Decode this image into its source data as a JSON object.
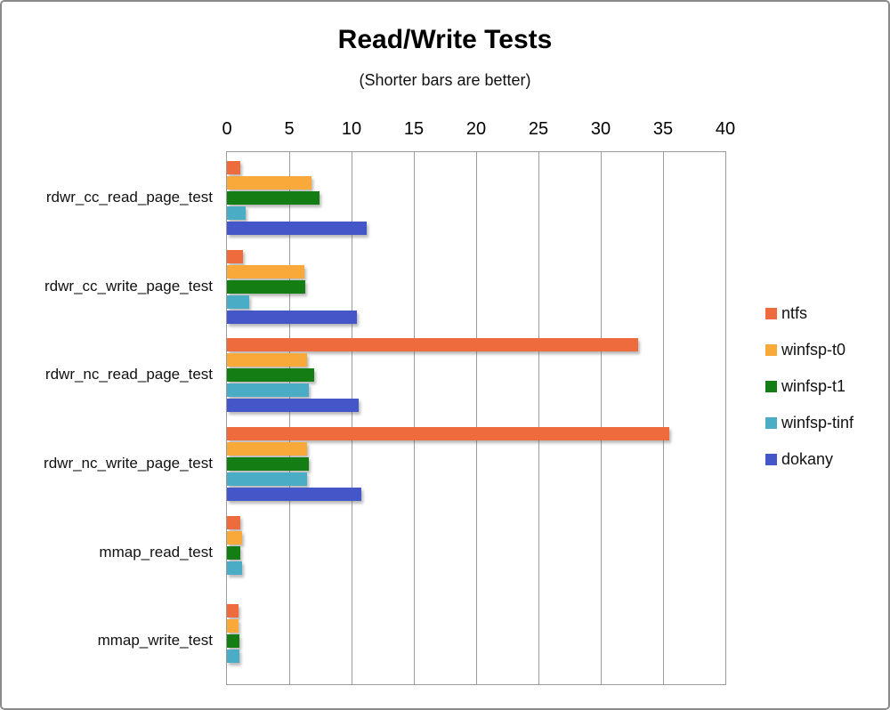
{
  "window": {
    "border_color": "#8a8a8a",
    "background": "#ffffff"
  },
  "chart_data": {
    "type": "bar",
    "orientation": "horizontal",
    "title": "Read/Write Tests",
    "subtitle": "(Shorter bars are better)",
    "categories": [
      "rdwr_cc_read_page_test",
      "rdwr_cc_write_page_test",
      "rdwr_nc_read_page_test",
      "rdwr_nc_write_page_test",
      "mmap_read_test",
      "mmap_write_test"
    ],
    "series": [
      {
        "name": "ntfs",
        "color": "#EE6B3D",
        "values": [
          1.1,
          1.3,
          33.0,
          35.5,
          1.1,
          0.9
        ]
      },
      {
        "name": "winfsp-t0",
        "color": "#F9A83A",
        "values": [
          6.8,
          6.2,
          6.4,
          6.4,
          1.2,
          0.9
        ]
      },
      {
        "name": "winfsp-t1",
        "color": "#147D14",
        "values": [
          7.4,
          6.3,
          7.0,
          6.6,
          1.1,
          1.0
        ]
      },
      {
        "name": "winfsp-tinf",
        "color": "#4BACC6",
        "values": [
          1.5,
          1.8,
          6.6,
          6.4,
          1.2,
          1.0
        ]
      },
      {
        "name": "dokany",
        "color": "#4456C8",
        "values": [
          11.2,
          10.4,
          10.6,
          10.8,
          0,
          0
        ]
      }
    ],
    "x_axis": {
      "min": 0,
      "max": 40,
      "tick_interval": 5,
      "ticks": [
        "0",
        "5",
        "10",
        "15",
        "20",
        "25",
        "30",
        "35",
        "40"
      ]
    },
    "legend_position": "right",
    "grid": true,
    "gridline_color": "#9b9b9b"
  }
}
